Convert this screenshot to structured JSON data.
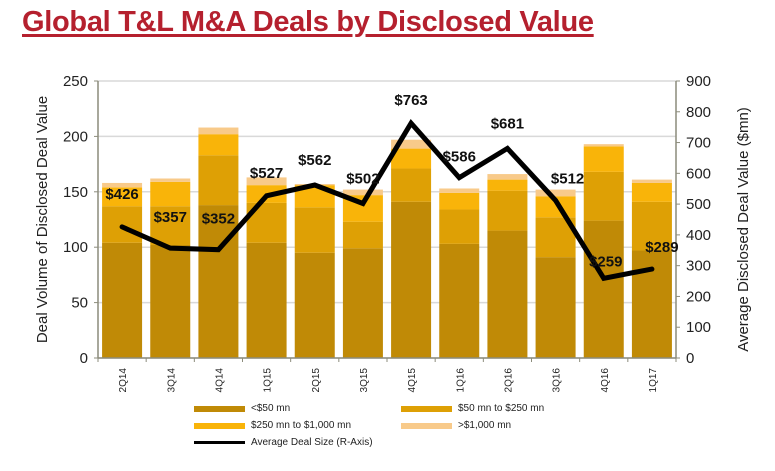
{
  "title": "Global T&L M&A Deals by Disclosed Value",
  "chart_data": {
    "type": "bar",
    "subtype": "stacked-bar-with-line",
    "title": "Global T&L M&A Deals by Disclosed Value",
    "categories": [
      "2Q14",
      "3Q14",
      "4Q14",
      "1Q15",
      "2Q15",
      "3Q15",
      "4Q15",
      "1Q16",
      "2Q16",
      "3Q16",
      "4Q16",
      "1Q17"
    ],
    "ylabel": "Deal Volume of Disclosed Deal Value",
    "y2label": "Average Disclosed Deal Value ($mn)",
    "xlabel": "",
    "ylim": [
      0,
      250
    ],
    "y2lim": [
      0,
      900
    ],
    "yticks": [
      0,
      50,
      100,
      150,
      200,
      250
    ],
    "y2ticks": [
      0,
      100,
      200,
      300,
      400,
      500,
      600,
      700,
      800,
      900
    ],
    "grid": true,
    "legend_position": "bottom",
    "series": [
      {
        "name": "<$50 mn",
        "axis": "left",
        "color": "#c08a06",
        "values": [
          104,
          102,
          138,
          104,
          95,
          99,
          141,
          103,
          115,
          91,
          124,
          97
        ]
      },
      {
        "name": "$50 mn to $250 mn",
        "axis": "left",
        "color": "#dea005",
        "values": [
          33,
          35,
          45,
          36,
          41,
          24,
          30,
          31,
          36,
          36,
          44,
          44
        ]
      },
      {
        "name": "$250 mn to $1,000 mn",
        "axis": "left",
        "color": "#f9b409",
        "values": [
          17,
          22,
          19,
          16,
          20,
          24,
          18,
          15,
          10,
          19,
          23,
          17
        ]
      },
      {
        "name": ">$1,000 mn",
        "axis": "left",
        "color": "#f8ca8a",
        "values": [
          4,
          3,
          6,
          7,
          1,
          5,
          8,
          4,
          5,
          6,
          2,
          3
        ]
      },
      {
        "name": "Average Deal Size (R-Axis)",
        "axis": "right",
        "type": "line",
        "color": "#000000",
        "values": [
          426,
          357,
          352,
          527,
          562,
          502,
          763,
          586,
          681,
          512,
          259,
          289
        ]
      }
    ],
    "data_labels": [
      "$426",
      "$357",
      "$352",
      "$527",
      "$562",
      "$502",
      "$763",
      "$586",
      "$681",
      "$512",
      "$259",
      "$289"
    ]
  },
  "legend": [
    {
      "label": "<$50 mn",
      "color": "#c08a06",
      "kind": "bar"
    },
    {
      "label": "$50 mn to $250 mn",
      "color": "#dea005",
      "kind": "bar"
    },
    {
      "label": "$250 mn to $1,000 mn",
      "color": "#f9b409",
      "kind": "bar"
    },
    {
      "label": ">$1,000 mn",
      "color": "#f8ca8a",
      "kind": "bar"
    },
    {
      "label": "Average Deal Size (R-Axis)",
      "color": "#000000",
      "kind": "line"
    }
  ]
}
